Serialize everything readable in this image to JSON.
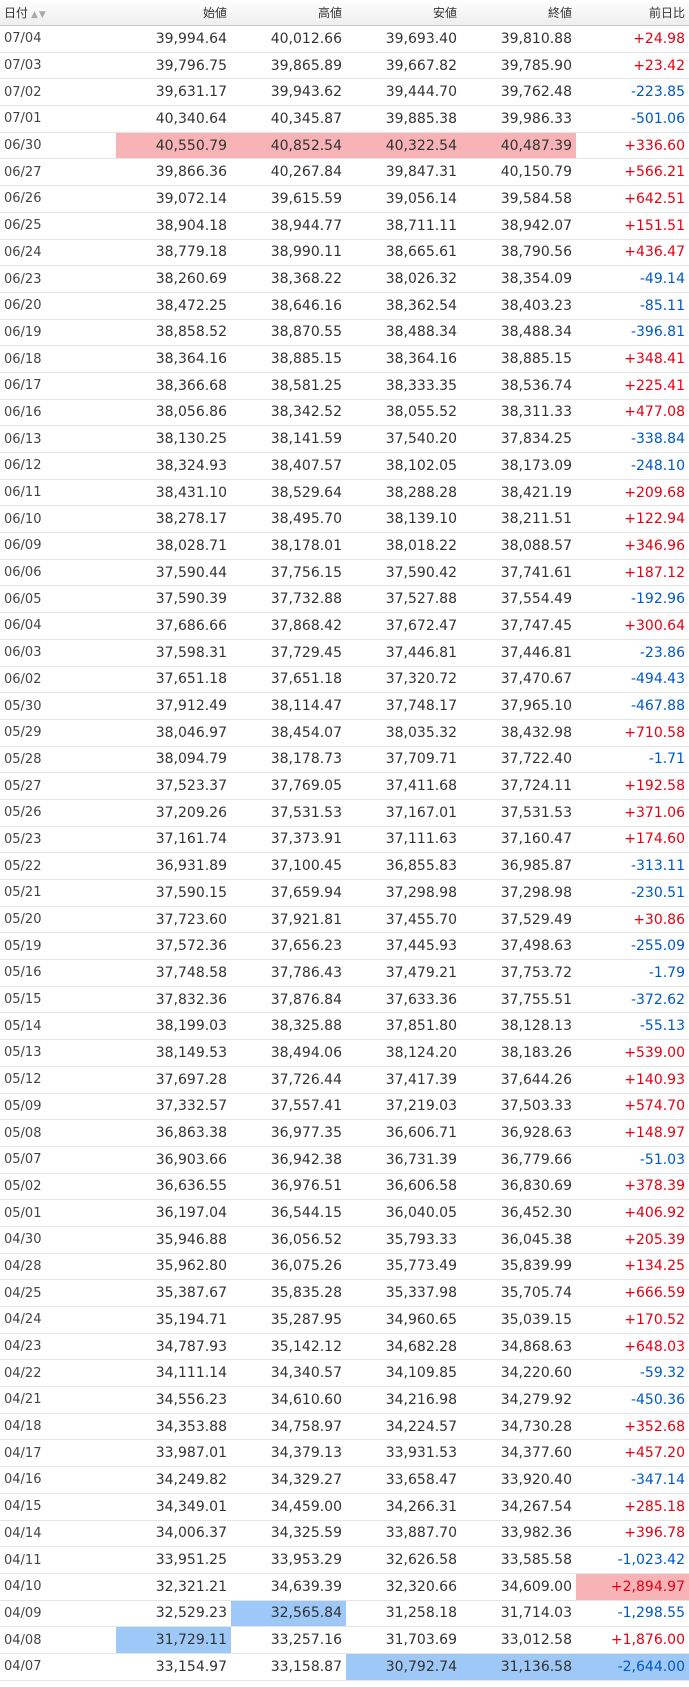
{
  "table": {
    "headers": {
      "date": "日付",
      "open": "始値",
      "high": "高値",
      "low": "安値",
      "close": "終値",
      "change": "前日比"
    },
    "rows": [
      {
        "date": "07/04",
        "open": "39,994.64",
        "high": "40,012.66",
        "low": "39,693.40",
        "close": "39,810.88",
        "change": "+24.98"
      },
      {
        "date": "07/03",
        "open": "39,796.75",
        "high": "39,865.89",
        "low": "39,667.82",
        "close": "39,785.90",
        "change": "+23.42"
      },
      {
        "date": "07/02",
        "open": "39,631.17",
        "high": "39,943.62",
        "low": "39,444.70",
        "close": "39,762.48",
        "change": "-223.85"
      },
      {
        "date": "07/01",
        "open": "40,340.64",
        "high": "40,345.87",
        "low": "39,885.38",
        "close": "39,986.33",
        "change": "-501.06"
      },
      {
        "date": "06/30",
        "open": "40,550.79",
        "high": "40,852.54",
        "low": "40,322.54",
        "close": "40,487.39",
        "change": "+336.60",
        "hl": {
          "open": "red",
          "high": "red",
          "low": "red",
          "close": "red"
        }
      },
      {
        "date": "06/27",
        "open": "39,866.36",
        "high": "40,267.84",
        "low": "39,847.31",
        "close": "40,150.79",
        "change": "+566.21"
      },
      {
        "date": "06/26",
        "open": "39,072.14",
        "high": "39,615.59",
        "low": "39,056.14",
        "close": "39,584.58",
        "change": "+642.51"
      },
      {
        "date": "06/25",
        "open": "38,904.18",
        "high": "38,944.77",
        "low": "38,711.11",
        "close": "38,942.07",
        "change": "+151.51"
      },
      {
        "date": "06/24",
        "open": "38,779.18",
        "high": "38,990.11",
        "low": "38,665.61",
        "close": "38,790.56",
        "change": "+436.47"
      },
      {
        "date": "06/23",
        "open": "38,260.69",
        "high": "38,368.22",
        "low": "38,026.32",
        "close": "38,354.09",
        "change": "-49.14"
      },
      {
        "date": "06/20",
        "open": "38,472.25",
        "high": "38,646.16",
        "low": "38,362.54",
        "close": "38,403.23",
        "change": "-85.11"
      },
      {
        "date": "06/19",
        "open": "38,858.52",
        "high": "38,870.55",
        "low": "38,488.34",
        "close": "38,488.34",
        "change": "-396.81"
      },
      {
        "date": "06/18",
        "open": "38,364.16",
        "high": "38,885.15",
        "low": "38,364.16",
        "close": "38,885.15",
        "change": "+348.41"
      },
      {
        "date": "06/17",
        "open": "38,366.68",
        "high": "38,581.25",
        "low": "38,333.35",
        "close": "38,536.74",
        "change": "+225.41"
      },
      {
        "date": "06/16",
        "open": "38,056.86",
        "high": "38,342.52",
        "low": "38,055.52",
        "close": "38,311.33",
        "change": "+477.08"
      },
      {
        "date": "06/13",
        "open": "38,130.25",
        "high": "38,141.59",
        "low": "37,540.20",
        "close": "37,834.25",
        "change": "-338.84"
      },
      {
        "date": "06/12",
        "open": "38,324.93",
        "high": "38,407.57",
        "low": "38,102.05",
        "close": "38,173.09",
        "change": "-248.10"
      },
      {
        "date": "06/11",
        "open": "38,431.10",
        "high": "38,529.64",
        "low": "38,288.28",
        "close": "38,421.19",
        "change": "+209.68"
      },
      {
        "date": "06/10",
        "open": "38,278.17",
        "high": "38,495.70",
        "low": "38,139.10",
        "close": "38,211.51",
        "change": "+122.94"
      },
      {
        "date": "06/09",
        "open": "38,028.71",
        "high": "38,178.01",
        "low": "38,018.22",
        "close": "38,088.57",
        "change": "+346.96"
      },
      {
        "date": "06/06",
        "open": "37,590.44",
        "high": "37,756.15",
        "low": "37,590.42",
        "close": "37,741.61",
        "change": "+187.12"
      },
      {
        "date": "06/05",
        "open": "37,590.39",
        "high": "37,732.88",
        "low": "37,527.88",
        "close": "37,554.49",
        "change": "-192.96"
      },
      {
        "date": "06/04",
        "open": "37,686.66",
        "high": "37,868.42",
        "low": "37,672.47",
        "close": "37,747.45",
        "change": "+300.64"
      },
      {
        "date": "06/03",
        "open": "37,598.31",
        "high": "37,729.45",
        "low": "37,446.81",
        "close": "37,446.81",
        "change": "-23.86"
      },
      {
        "date": "06/02",
        "open": "37,651.18",
        "high": "37,651.18",
        "low": "37,320.72",
        "close": "37,470.67",
        "change": "-494.43"
      },
      {
        "date": "05/30",
        "open": "37,912.49",
        "high": "38,114.47",
        "low": "37,748.17",
        "close": "37,965.10",
        "change": "-467.88"
      },
      {
        "date": "05/29",
        "open": "38,046.97",
        "high": "38,454.07",
        "low": "38,035.32",
        "close": "38,432.98",
        "change": "+710.58"
      },
      {
        "date": "05/28",
        "open": "38,094.79",
        "high": "38,178.73",
        "low": "37,709.71",
        "close": "37,722.40",
        "change": "-1.71"
      },
      {
        "date": "05/27",
        "open": "37,523.37",
        "high": "37,769.05",
        "low": "37,411.68",
        "close": "37,724.11",
        "change": "+192.58"
      },
      {
        "date": "05/26",
        "open": "37,209.26",
        "high": "37,531.53",
        "low": "37,167.01",
        "close": "37,531.53",
        "change": "+371.06"
      },
      {
        "date": "05/23",
        "open": "37,161.74",
        "high": "37,373.91",
        "low": "37,111.63",
        "close": "37,160.47",
        "change": "+174.60"
      },
      {
        "date": "05/22",
        "open": "36,931.89",
        "high": "37,100.45",
        "low": "36,855.83",
        "close": "36,985.87",
        "change": "-313.11"
      },
      {
        "date": "05/21",
        "open": "37,590.15",
        "high": "37,659.94",
        "low": "37,298.98",
        "close": "37,298.98",
        "change": "-230.51"
      },
      {
        "date": "05/20",
        "open": "37,723.60",
        "high": "37,921.81",
        "low": "37,455.70",
        "close": "37,529.49",
        "change": "+30.86"
      },
      {
        "date": "05/19",
        "open": "37,572.36",
        "high": "37,656.23",
        "low": "37,445.93",
        "close": "37,498.63",
        "change": "-255.09"
      },
      {
        "date": "05/16",
        "open": "37,748.58",
        "high": "37,786.43",
        "low": "37,479.21",
        "close": "37,753.72",
        "change": "-1.79"
      },
      {
        "date": "05/15",
        "open": "37,832.36",
        "high": "37,876.84",
        "low": "37,633.36",
        "close": "37,755.51",
        "change": "-372.62"
      },
      {
        "date": "05/14",
        "open": "38,199.03",
        "high": "38,325.88",
        "low": "37,851.80",
        "close": "38,128.13",
        "change": "-55.13"
      },
      {
        "date": "05/13",
        "open": "38,149.53",
        "high": "38,494.06",
        "low": "38,124.20",
        "close": "38,183.26",
        "change": "+539.00"
      },
      {
        "date": "05/12",
        "open": "37,697.28",
        "high": "37,726.44",
        "low": "37,417.39",
        "close": "37,644.26",
        "change": "+140.93"
      },
      {
        "date": "05/09",
        "open": "37,332.57",
        "high": "37,557.41",
        "low": "37,219.03",
        "close": "37,503.33",
        "change": "+574.70"
      },
      {
        "date": "05/08",
        "open": "36,863.38",
        "high": "36,977.35",
        "low": "36,606.71",
        "close": "36,928.63",
        "change": "+148.97"
      },
      {
        "date": "05/07",
        "open": "36,903.66",
        "high": "36,942.38",
        "low": "36,731.39",
        "close": "36,779.66",
        "change": "-51.03"
      },
      {
        "date": "05/02",
        "open": "36,636.55",
        "high": "36,976.51",
        "low": "36,606.58",
        "close": "36,830.69",
        "change": "+378.39"
      },
      {
        "date": "05/01",
        "open": "36,197.04",
        "high": "36,544.15",
        "low": "36,040.05",
        "close": "36,452.30",
        "change": "+406.92"
      },
      {
        "date": "04/30",
        "open": "35,946.88",
        "high": "36,056.52",
        "low": "35,793.33",
        "close": "36,045.38",
        "change": "+205.39"
      },
      {
        "date": "04/28",
        "open": "35,962.80",
        "high": "36,075.26",
        "low": "35,773.49",
        "close": "35,839.99",
        "change": "+134.25"
      },
      {
        "date": "04/25",
        "open": "35,387.67",
        "high": "35,835.28",
        "low": "35,337.98",
        "close": "35,705.74",
        "change": "+666.59"
      },
      {
        "date": "04/24",
        "open": "35,194.71",
        "high": "35,287.95",
        "low": "34,960.65",
        "close": "35,039.15",
        "change": "+170.52"
      },
      {
        "date": "04/23",
        "open": "34,787.93",
        "high": "35,142.12",
        "low": "34,682.28",
        "close": "34,868.63",
        "change": "+648.03"
      },
      {
        "date": "04/22",
        "open": "34,111.14",
        "high": "34,340.57",
        "low": "34,109.85",
        "close": "34,220.60",
        "change": "-59.32"
      },
      {
        "date": "04/21",
        "open": "34,556.23",
        "high": "34,610.60",
        "low": "34,216.98",
        "close": "34,279.92",
        "change": "-450.36"
      },
      {
        "date": "04/18",
        "open": "34,353.88",
        "high": "34,758.97",
        "low": "34,224.57",
        "close": "34,730.28",
        "change": "+352.68"
      },
      {
        "date": "04/17",
        "open": "33,987.01",
        "high": "34,379.13",
        "low": "33,931.53",
        "close": "34,377.60",
        "change": "+457.20"
      },
      {
        "date": "04/16",
        "open": "34,249.82",
        "high": "34,329.27",
        "low": "33,658.47",
        "close": "33,920.40",
        "change": "-347.14"
      },
      {
        "date": "04/15",
        "open": "34,349.01",
        "high": "34,459.00",
        "low": "34,266.31",
        "close": "34,267.54",
        "change": "+285.18"
      },
      {
        "date": "04/14",
        "open": "34,006.37",
        "high": "34,325.59",
        "low": "33,887.70",
        "close": "33,982.36",
        "change": "+396.78"
      },
      {
        "date": "04/11",
        "open": "33,951.25",
        "high": "33,953.29",
        "low": "32,626.58",
        "close": "33,585.58",
        "change": "-1,023.42"
      },
      {
        "date": "04/10",
        "open": "32,321.21",
        "high": "34,639.39",
        "low": "32,320.66",
        "close": "34,609.00",
        "change": "+2,894.97",
        "hl": {
          "change": "red"
        }
      },
      {
        "date": "04/09",
        "open": "32,529.23",
        "high": "32,565.84",
        "low": "31,258.18",
        "close": "31,714.03",
        "change": "-1,298.55",
        "hl": {
          "high": "blue"
        }
      },
      {
        "date": "04/08",
        "open": "31,729.11",
        "high": "33,257.16",
        "low": "31,703.69",
        "close": "33,012.58",
        "change": "+1,876.00",
        "hl": {
          "open": "blue"
        }
      },
      {
        "date": "04/07",
        "open": "33,154.97",
        "high": "33,158.87",
        "low": "30,792.74",
        "close": "31,136.58",
        "change": "-2,644.00",
        "hl": {
          "low": "blue",
          "close": "blue",
          "change": "blue"
        }
      }
    ]
  },
  "colors": {
    "up": "#e60012",
    "down": "#0058c8",
    "highlight_high": "#f7b3b6",
    "highlight_low": "#9ec8f7"
  }
}
